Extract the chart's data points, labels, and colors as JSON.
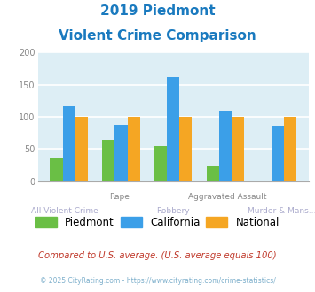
{
  "title_line1": "2019 Piedmont",
  "title_line2": "Violent Crime Comparison",
  "title_color": "#1a7abf",
  "categories": [
    "All Violent Crime",
    "Rape",
    "Robbery",
    "Aggravated Assault",
    "Murder & Mans..."
  ],
  "x_top_labels": [
    "",
    "Rape",
    "",
    "Aggravated Assault",
    ""
  ],
  "x_bot_labels": [
    "All Violent Crime",
    "",
    "Robbery",
    "",
    "Murder & Mans..."
  ],
  "x_top_color": "#888888",
  "x_bot_color": "#aaaacc",
  "piedmont": [
    35,
    64,
    55,
    23,
    0
  ],
  "california": [
    117,
    87,
    162,
    108,
    86
  ],
  "national": [
    100,
    100,
    100,
    100,
    100
  ],
  "bar_colors": {
    "piedmont": "#6abf45",
    "california": "#3b9fe8",
    "national": "#f5a623"
  },
  "ylim": [
    0,
    200
  ],
  "yticks": [
    0,
    50,
    100,
    150,
    200
  ],
  "background_color": "#ddeef5",
  "grid_color": "#ffffff",
  "footnote1": "Compared to U.S. average. (U.S. average equals 100)",
  "footnote2": "© 2025 CityRating.com - https://www.cityrating.com/crime-statistics/",
  "footnote1_color": "#c0392b",
  "footnote2_color": "#7fb0cc"
}
